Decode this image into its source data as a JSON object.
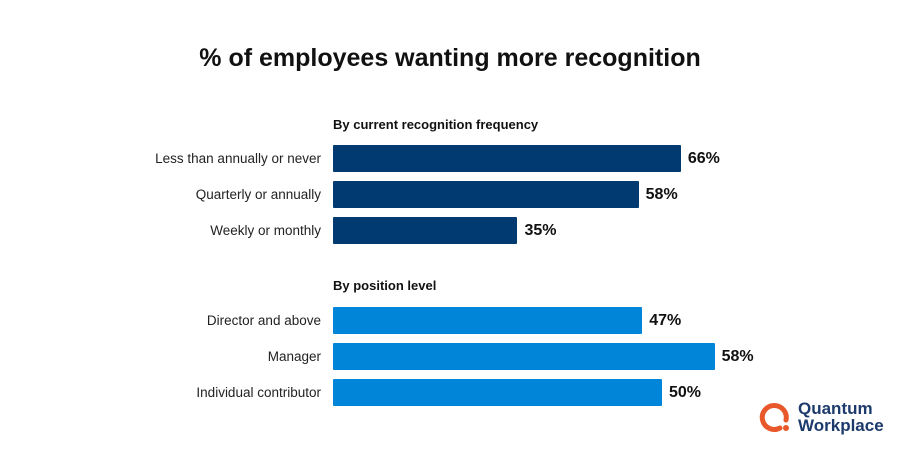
{
  "chart_data": [
    {
      "type": "bar",
      "orientation": "horizontal",
      "title": "% of employees wanting more recognition",
      "group_title": "By current recognition frequency",
      "categories": [
        "Less than annually or never",
        "Quarterly or annually",
        "Weekly or monthly"
      ],
      "values": [
        66,
        58,
        35
      ],
      "value_labels": [
        "66%",
        "58%",
        "35%"
      ],
      "color": "#003a70"
    },
    {
      "type": "bar",
      "orientation": "horizontal",
      "group_title": "By position level",
      "categories": [
        "Director and above",
        "Manager",
        "Individual contributor"
      ],
      "values": [
        47,
        58,
        50
      ],
      "value_labels": [
        "47%",
        "58%",
        "50%"
      ],
      "color": "#0085d8"
    }
  ],
  "title": "% of employees wanting more recognition",
  "logo": {
    "line1": "Quantum",
    "line2": "Workplace",
    "accent": "#e8582a"
  }
}
